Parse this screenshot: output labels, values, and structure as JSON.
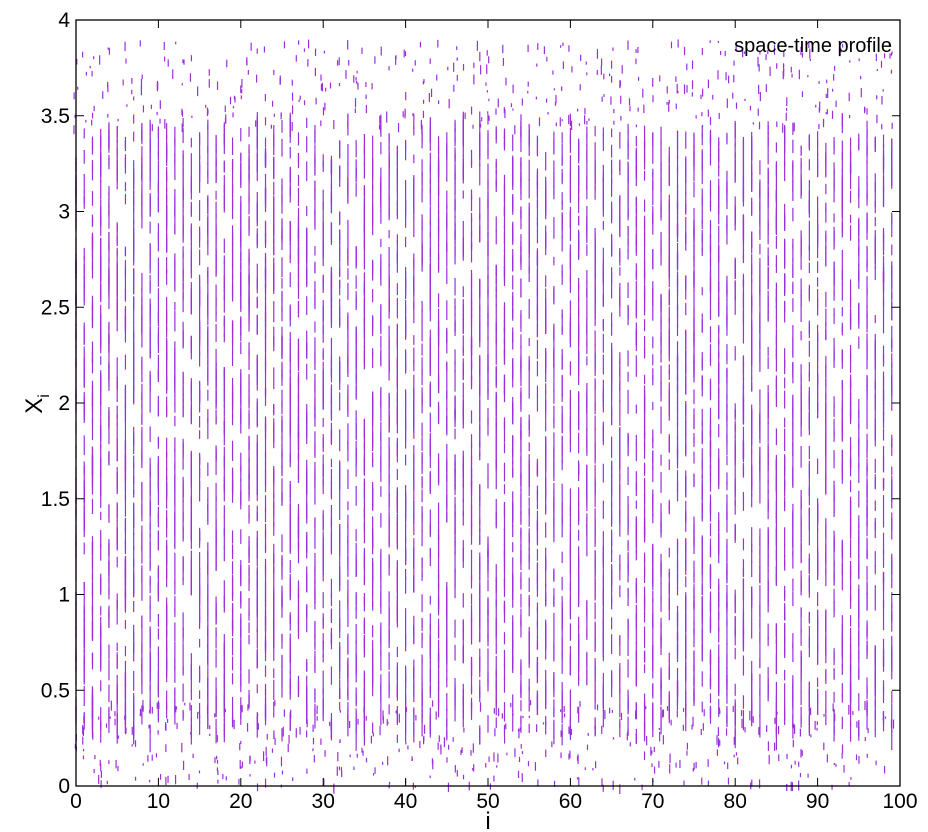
{
  "chart_data": {
    "type": "scatter",
    "annotation": "space-time profile",
    "xlabel": "i",
    "ylabel": "X",
    "ylabel_subscript": "i",
    "xlim": [
      0,
      100
    ],
    "ylim": [
      0,
      4
    ],
    "x_ticks": [
      "0",
      "10",
      "20",
      "30",
      "40",
      "50",
      "60",
      "70",
      "80",
      "90",
      "100"
    ],
    "y_ticks": [
      "0",
      "0.5",
      "1",
      "1.5",
      "2",
      "2.5",
      "3",
      "3.5",
      "4"
    ],
    "grid": false,
    "legend": "none",
    "series": [
      {
        "marker_color": "#9B30D9",
        "x_range": [
          0,
          99
        ],
        "x_step": 1,
        "typical_dense_y_range": [
          0.4,
          3.4
        ],
        "sparse_y_range": [
          0.0,
          3.9
        ]
      }
    ]
  }
}
